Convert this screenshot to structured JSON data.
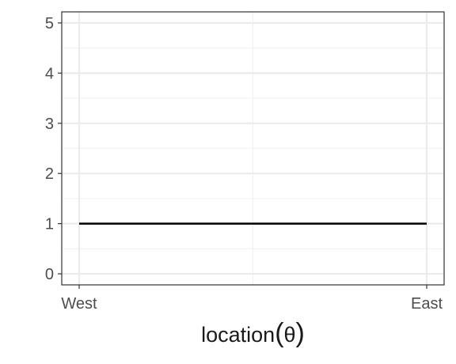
{
  "chart_data": {
    "type": "line",
    "x_categories": [
      "West",
      "East"
    ],
    "y_ticks": [
      0,
      1,
      2,
      3,
      4,
      5
    ],
    "ylim": [
      -0.22,
      5.22
    ],
    "grid": true,
    "xlabel_parts": {
      "text": "location",
      "open": "(",
      "symbol": "θ",
      "close": ")"
    },
    "series": [
      {
        "x": [
          0,
          1
        ],
        "y": [
          1,
          1
        ]
      }
    ],
    "colors": {
      "line": "#000000",
      "grid_major": "#ebebeb",
      "grid_minor": "#f2f2f2",
      "panel_border": "#333333"
    }
  }
}
